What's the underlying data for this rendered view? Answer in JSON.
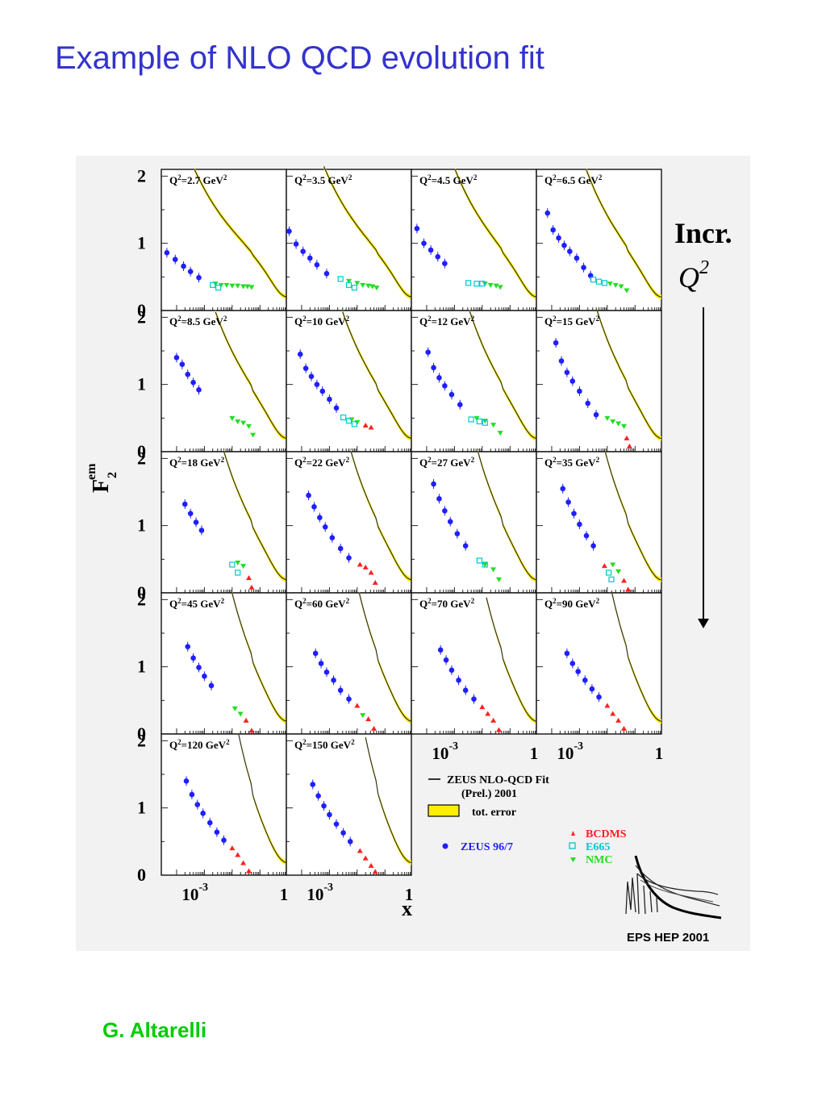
{
  "slide": {
    "title": "Example of NLO QCD evolution fit",
    "author": "G. Altarelli"
  },
  "colors": {
    "title": "#3333cc",
    "author": "#00cc00",
    "zeus": "#1f1fff",
    "bcdms": "#ff2020",
    "e665": "#00c8d0",
    "nmc": "#22dd22",
    "error_band": "#ffee00",
    "fit_line": "#333333"
  },
  "chart_data": {
    "type": "scatter",
    "grid_rows": 5,
    "grid_cols": 4,
    "xlabel": "x",
    "ylabel": "F2^em",
    "x_scale": "log",
    "x_tick_labels": [
      "10^-3",
      "1"
    ],
    "y_ticks": [
      0,
      1,
      2
    ],
    "ylim": [
      0,
      2.1
    ],
    "annotation": {
      "line1": "Incr.",
      "line2": "Q",
      "sup": "2"
    },
    "legend": {
      "fit_line1": "ZEUS NLO-QCD Fit",
      "fit_line2": "(Prel.) 2001",
      "band": "tot. error",
      "zeus": "ZEUS 96/7",
      "bcdms": "BCDMS",
      "e665": "E665",
      "nmc": "NMC"
    },
    "logo_text": "EPS HEP 2001",
    "panels": [
      {
        "label": "Q",
        "sup": "2",
        "rest": "=2.7 GeV",
        "unit_sup": "2",
        "q2": 2.7,
        "zeus": [
          [
            -4.35,
            0.86
          ],
          [
            -4.05,
            0.76
          ],
          [
            -3.75,
            0.66
          ],
          [
            -3.5,
            0.58
          ],
          [
            -3.2,
            0.49
          ]
        ],
        "nmc": [
          [
            -2.6,
            0.4
          ],
          [
            -2.4,
            0.38
          ],
          [
            -2.2,
            0.38
          ],
          [
            -2.0,
            0.37
          ],
          [
            -1.8,
            0.37
          ],
          [
            -1.6,
            0.36
          ],
          [
            -1.45,
            0.36
          ],
          [
            -1.3,
            0.35
          ]
        ],
        "e665": [
          [
            -2.7,
            0.38
          ],
          [
            -2.5,
            0.34
          ]
        ],
        "bcdms": []
      },
      {
        "label": "Q",
        "sup": "2",
        "rest": "=3.5 GeV",
        "unit_sup": "2",
        "q2": 3.5,
        "zeus": [
          [
            -4.45,
            1.18
          ],
          [
            -4.2,
            0.99
          ],
          [
            -3.95,
            0.88
          ],
          [
            -3.7,
            0.78
          ],
          [
            -3.45,
            0.68
          ],
          [
            -3.1,
            0.55
          ]
        ],
        "nmc": [
          [
            -2.3,
            0.44
          ],
          [
            -2.0,
            0.41
          ],
          [
            -1.8,
            0.38
          ],
          [
            -1.6,
            0.37
          ],
          [
            -1.45,
            0.36
          ],
          [
            -1.3,
            0.34
          ]
        ],
        "e665": [
          [
            -2.6,
            0.47
          ],
          [
            -2.3,
            0.38
          ],
          [
            -2.1,
            0.34
          ]
        ],
        "bcdms": []
      },
      {
        "label": "Q",
        "sup": "2",
        "rest": "=4.5 GeV",
        "unit_sup": "2",
        "q2": 4.5,
        "zeus": [
          [
            -4.35,
            1.22
          ],
          [
            -4.1,
            1.0
          ],
          [
            -3.85,
            0.9
          ],
          [
            -3.6,
            0.8
          ],
          [
            -3.35,
            0.7
          ]
        ],
        "nmc": [
          [
            -1.9,
            0.4
          ],
          [
            -1.7,
            0.38
          ],
          [
            -1.5,
            0.37
          ],
          [
            -1.35,
            0.35
          ]
        ],
        "e665": [
          [
            -2.5,
            0.41
          ],
          [
            -2.2,
            0.4
          ],
          [
            -2.0,
            0.4
          ]
        ],
        "bcdms": []
      },
      {
        "label": "Q",
        "sup": "2",
        "rest": "=6.5 GeV",
        "unit_sup": "2",
        "q2": 6.5,
        "zeus": [
          [
            -4.15,
            1.45
          ],
          [
            -3.95,
            1.2
          ],
          [
            -3.75,
            1.08
          ],
          [
            -3.55,
            0.97
          ],
          [
            -3.35,
            0.88
          ],
          [
            -3.1,
            0.78
          ],
          [
            -2.85,
            0.64
          ],
          [
            -2.6,
            0.52
          ]
        ],
        "nmc": [
          [
            -1.9,
            0.4
          ],
          [
            -1.7,
            0.38
          ],
          [
            -1.5,
            0.36
          ],
          [
            -1.3,
            0.3
          ]
        ],
        "e665": [
          [
            -2.5,
            0.46
          ],
          [
            -2.3,
            0.43
          ],
          [
            -2.1,
            0.41
          ]
        ],
        "bcdms": []
      },
      {
        "label": "Q",
        "sup": "2",
        "rest": "=8.5 GeV",
        "unit_sup": "2",
        "q2": 8.5,
        "zeus": [
          [
            -4.0,
            1.4
          ],
          [
            -3.8,
            1.3
          ],
          [
            -3.6,
            1.15
          ],
          [
            -3.4,
            1.03
          ],
          [
            -3.2,
            0.92
          ]
        ],
        "nmc": [
          [
            -2.0,
            0.5
          ],
          [
            -1.8,
            0.45
          ],
          [
            -1.6,
            0.43
          ],
          [
            -1.4,
            0.38
          ],
          [
            -1.25,
            0.25
          ]
        ],
        "e665": [],
        "bcdms": []
      },
      {
        "label": "Q",
        "sup": "2",
        "rest": "=10 GeV",
        "unit_sup": "2",
        "q2": 10,
        "zeus": [
          [
            -4.05,
            1.45
          ],
          [
            -3.85,
            1.24
          ],
          [
            -3.65,
            1.12
          ],
          [
            -3.45,
            1.0
          ],
          [
            -3.25,
            0.9
          ],
          [
            -3.0,
            0.78
          ],
          [
            -2.75,
            0.65
          ]
        ],
        "nmc": [
          [
            -2.2,
            0.48
          ],
          [
            -2.0,
            0.44
          ]
        ],
        "e665": [
          [
            -2.5,
            0.51
          ],
          [
            -2.3,
            0.46
          ],
          [
            -2.1,
            0.41
          ]
        ],
        "bcdms": [
          [
            -1.7,
            0.39
          ],
          [
            -1.5,
            0.36
          ]
        ]
      },
      {
        "label": "Q",
        "sup": "2",
        "rest": "=12 GeV",
        "unit_sup": "2",
        "q2": 12,
        "zeus": [
          [
            -3.95,
            1.48
          ],
          [
            -3.75,
            1.25
          ],
          [
            -3.55,
            1.1
          ],
          [
            -3.35,
            0.98
          ],
          [
            -3.1,
            0.85
          ],
          [
            -2.8,
            0.7
          ]
        ],
        "nmc": [
          [
            -2.2,
            0.5
          ],
          [
            -1.9,
            0.46
          ],
          [
            -1.6,
            0.4
          ],
          [
            -1.35,
            0.28
          ]
        ],
        "e665": [
          [
            -2.4,
            0.48
          ],
          [
            -2.1,
            0.45
          ],
          [
            -1.9,
            0.43
          ]
        ],
        "bcdms": []
      },
      {
        "label": "Q",
        "sup": "2",
        "rest": "=15 GeV",
        "unit_sup": "2",
        "q2": 15,
        "zeus": [
          [
            -3.85,
            1.62
          ],
          [
            -3.65,
            1.35
          ],
          [
            -3.45,
            1.18
          ],
          [
            -3.25,
            1.05
          ],
          [
            -3.0,
            0.9
          ],
          [
            -2.7,
            0.72
          ],
          [
            -2.4,
            0.55
          ]
        ],
        "nmc": [
          [
            -2.0,
            0.5
          ],
          [
            -1.8,
            0.45
          ],
          [
            -1.6,
            0.42
          ],
          [
            -1.4,
            0.38
          ]
        ],
        "e665": [],
        "bcdms": [
          [
            -1.3,
            0.2
          ],
          [
            -1.2,
            0.08
          ]
        ]
      },
      {
        "label": "Q",
        "sup": "2",
        "rest": "=18 GeV",
        "unit_sup": "2",
        "q2": 18,
        "zeus": [
          [
            -3.7,
            1.32
          ],
          [
            -3.5,
            1.18
          ],
          [
            -3.3,
            1.05
          ],
          [
            -3.1,
            0.93
          ]
        ],
        "nmc": [
          [
            -1.8,
            0.45
          ],
          [
            -1.6,
            0.4
          ]
        ],
        "e665": [
          [
            -2.0,
            0.42
          ],
          [
            -1.8,
            0.3
          ]
        ],
        "bcdms": [
          [
            -1.4,
            0.22
          ],
          [
            -1.3,
            0.08
          ]
        ]
      },
      {
        "label": "Q",
        "sup": "2",
        "rest": "=22 GeV",
        "unit_sup": "2",
        "q2": 22,
        "zeus": [
          [
            -3.75,
            1.45
          ],
          [
            -3.55,
            1.28
          ],
          [
            -3.35,
            1.12
          ],
          [
            -3.15,
            0.98
          ],
          [
            -2.9,
            0.82
          ],
          [
            -2.6,
            0.66
          ],
          [
            -2.3,
            0.52
          ]
        ],
        "nmc": [],
        "e665": [],
        "bcdms": [
          [
            -1.9,
            0.42
          ],
          [
            -1.7,
            0.38
          ],
          [
            -1.5,
            0.3
          ],
          [
            -1.35,
            0.15
          ]
        ]
      },
      {
        "label": "Q",
        "sup": "2",
        "rest": "=27 GeV",
        "unit_sup": "2",
        "q2": 27,
        "zeus": [
          [
            -3.75,
            1.62
          ],
          [
            -3.55,
            1.4
          ],
          [
            -3.35,
            1.22
          ],
          [
            -3.15,
            1.06
          ],
          [
            -2.9,
            0.88
          ],
          [
            -2.6,
            0.7
          ]
        ],
        "nmc": [
          [
            -1.9,
            0.42
          ],
          [
            -1.6,
            0.35
          ],
          [
            -1.4,
            0.2
          ]
        ],
        "e665": [
          [
            -2.1,
            0.48
          ],
          [
            -1.9,
            0.42
          ]
        ],
        "bcdms": []
      },
      {
        "label": "Q",
        "sup": "2",
        "rest": "=35 GeV",
        "unit_sup": "2",
        "q2": 35,
        "zeus": [
          [
            -3.6,
            1.55
          ],
          [
            -3.4,
            1.35
          ],
          [
            -3.2,
            1.18
          ],
          [
            -3.0,
            1.02
          ],
          [
            -2.75,
            0.85
          ],
          [
            -2.5,
            0.7
          ]
        ],
        "nmc": [
          [
            -1.8,
            0.42
          ],
          [
            -1.6,
            0.32
          ]
        ],
        "e665": [
          [
            -1.95,
            0.3
          ],
          [
            -1.85,
            0.2
          ]
        ],
        "bcdms": [
          [
            -2.1,
            0.4
          ],
          [
            -1.4,
            0.18
          ],
          [
            -1.25,
            0.05
          ]
        ]
      },
      {
        "label": "Q",
        "sup": "2",
        "rest": "=45 GeV",
        "unit_sup": "2",
        "q2": 45,
        "zeus": [
          [
            -3.6,
            1.3
          ],
          [
            -3.4,
            1.13
          ],
          [
            -3.2,
            0.99
          ],
          [
            -3.0,
            0.86
          ],
          [
            -2.75,
            0.72
          ]
        ],
        "nmc": [
          [
            -1.9,
            0.38
          ],
          [
            -1.7,
            0.3
          ]
        ],
        "e665": [],
        "bcdms": [
          [
            -1.5,
            0.2
          ],
          [
            -1.3,
            0.05
          ]
        ]
      },
      {
        "label": "Q",
        "sup": "2",
        "rest": "=60 GeV",
        "unit_sup": "2",
        "q2": 60,
        "zeus": [
          [
            -3.5,
            1.2
          ],
          [
            -3.3,
            1.05
          ],
          [
            -3.1,
            0.92
          ],
          [
            -2.85,
            0.8
          ],
          [
            -2.6,
            0.65
          ],
          [
            -2.3,
            0.52
          ]
        ],
        "nmc": [
          [
            -1.8,
            0.28
          ]
        ],
        "e665": [],
        "bcdms": [
          [
            -2.0,
            0.42
          ],
          [
            -1.6,
            0.22
          ],
          [
            -1.4,
            0.08
          ]
        ]
      },
      {
        "label": "Q",
        "sup": "2",
        "rest": "=70 GeV",
        "unit_sup": "2",
        "q2": 70,
        "zeus": [
          [
            -3.5,
            1.25
          ],
          [
            -3.3,
            1.1
          ],
          [
            -3.1,
            0.95
          ],
          [
            -2.85,
            0.8
          ],
          [
            -2.6,
            0.65
          ],
          [
            -2.3,
            0.52
          ]
        ],
        "nmc": [],
        "e665": [],
        "bcdms": [
          [
            -2.0,
            0.4
          ],
          [
            -1.8,
            0.3
          ],
          [
            -1.6,
            0.2
          ],
          [
            -1.4,
            0.06
          ]
        ]
      },
      {
        "label": "Q",
        "sup": "2",
        "rest": "=90 GeV",
        "unit_sup": "2",
        "q2": 90,
        "zeus": [
          [
            -3.45,
            1.2
          ],
          [
            -3.25,
            1.05
          ],
          [
            -3.05,
            0.93
          ],
          [
            -2.8,
            0.8
          ],
          [
            -2.55,
            0.67
          ],
          [
            -2.3,
            0.55
          ]
        ],
        "nmc": [],
        "e665": [],
        "bcdms": [
          [
            -2.0,
            0.42
          ],
          [
            -1.8,
            0.3
          ],
          [
            -1.6,
            0.2
          ],
          [
            -1.4,
            0.08
          ]
        ]
      },
      {
        "label": "Q",
        "sup": "2",
        "rest": "=120 GeV",
        "unit_sup": "2",
        "q2": 120,
        "zeus": [
          [
            -3.65,
            1.4
          ],
          [
            -3.45,
            1.2
          ],
          [
            -3.25,
            1.05
          ],
          [
            -3.05,
            0.92
          ],
          [
            -2.8,
            0.78
          ],
          [
            -2.55,
            0.64
          ],
          [
            -2.3,
            0.52
          ]
        ],
        "nmc": [],
        "e665": [],
        "bcdms": [
          [
            -2.0,
            0.4
          ],
          [
            -1.8,
            0.3
          ],
          [
            -1.6,
            0.18
          ],
          [
            -1.4,
            0.06
          ]
        ]
      },
      {
        "label": "Q",
        "sup": "2",
        "rest": "=150 GeV",
        "unit_sup": "2",
        "q2": 150,
        "zeus": [
          [
            -3.6,
            1.35
          ],
          [
            -3.4,
            1.18
          ],
          [
            -3.2,
            1.03
          ],
          [
            -3.0,
            0.9
          ],
          [
            -2.75,
            0.76
          ],
          [
            -2.5,
            0.63
          ],
          [
            -2.25,
            0.5
          ]
        ],
        "nmc": [],
        "e665": [],
        "bcdms": [
          [
            -1.9,
            0.36
          ],
          [
            -1.7,
            0.25
          ],
          [
            -1.5,
            0.14
          ],
          [
            -1.35,
            0.05
          ]
        ]
      }
    ]
  }
}
